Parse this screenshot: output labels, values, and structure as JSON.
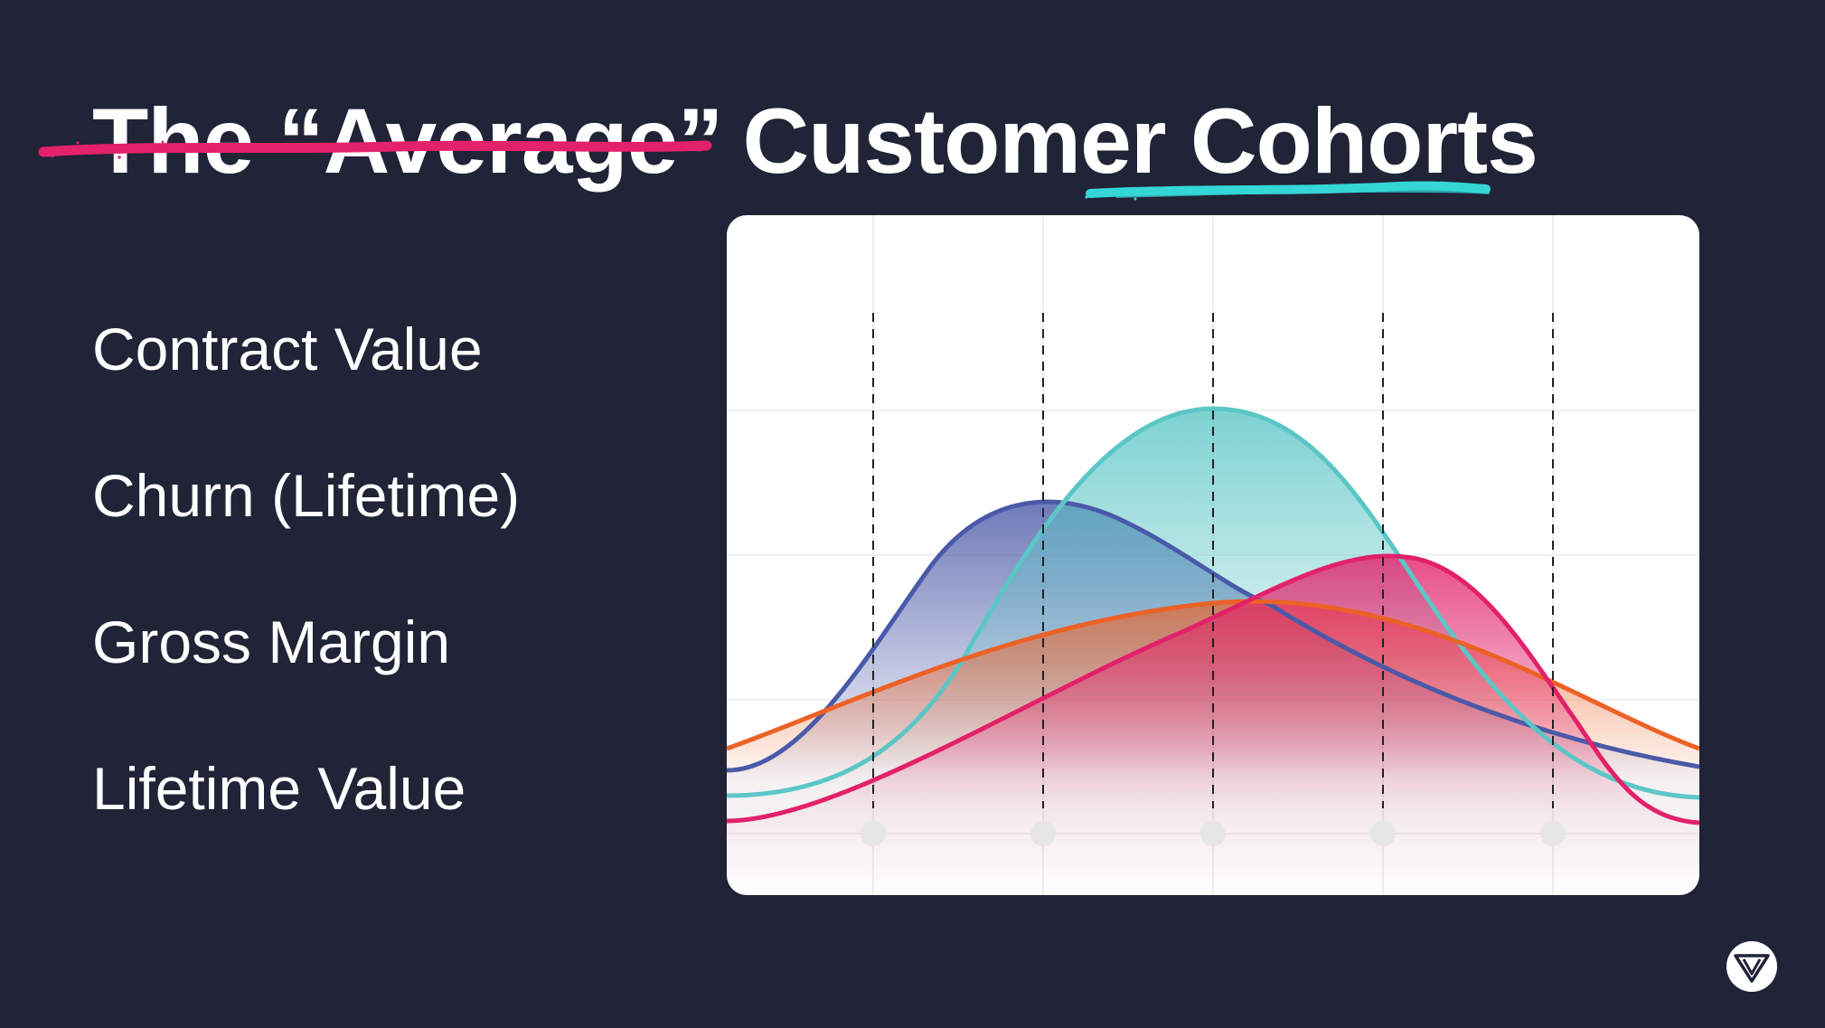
{
  "title": {
    "struck_text": "The “Average”",
    "main_text": "Customer Cohorts",
    "strike_color": "#e3226b",
    "underline_color": "#34d6d6"
  },
  "metrics": [
    {
      "label": "Contract Value"
    },
    {
      "label": "Churn (Lifetime)"
    },
    {
      "label": "Gross Margin"
    },
    {
      "label": "Lifetime Value"
    }
  ],
  "chart": {
    "curves": [
      {
        "id": "navy",
        "color": "#4a59a8"
      },
      {
        "id": "teal",
        "color": "#5cc6c6"
      },
      {
        "id": "orange",
        "color": "#ec6126"
      },
      {
        "id": "pink",
        "color": "#e2216a"
      }
    ],
    "background_color": "#ffffff",
    "dashed_line_color": "#222222",
    "marker_color": "#e6e6e6"
  },
  "logo": {
    "icon": "v-logo-icon"
  }
}
